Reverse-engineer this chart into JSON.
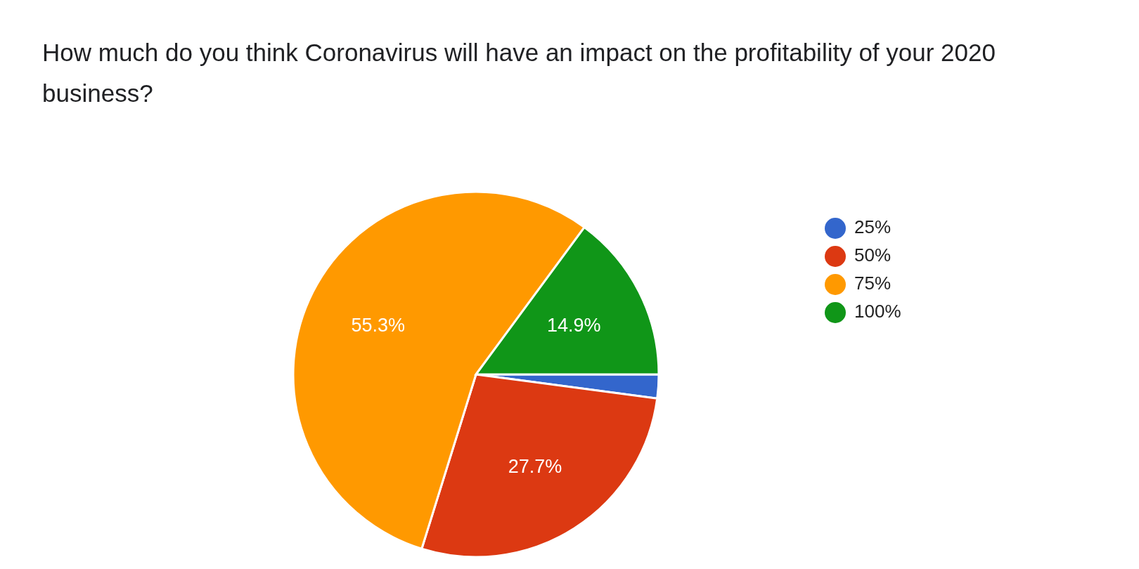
{
  "chart_data": {
    "type": "pie",
    "title": "How much do you think Coronavirus will have an impact on the profitability of your 2020 business?",
    "categories": [
      "25%",
      "50%",
      "75%",
      "100%"
    ],
    "values": [
      2.1,
      27.7,
      55.3,
      14.9
    ],
    "colors": [
      "#3366cc",
      "#dc3912",
      "#ff9900",
      "#109618"
    ],
    "value_labels": [
      null,
      "27.7%",
      "55.3%",
      "14.9%"
    ],
    "legend": "right"
  }
}
